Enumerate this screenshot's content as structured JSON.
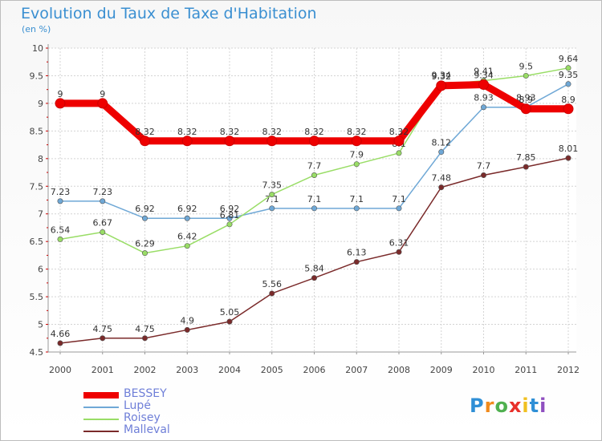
{
  "header": {
    "title": "Evolution du Taux de Taxe d'Habitation",
    "subtitle": "(en %)"
  },
  "logo": {
    "text": "Proxiti"
  },
  "legend_items": [
    "BESSEY",
    "Lupé",
    "Roisey",
    "Malleval"
  ],
  "chart_data": {
    "type": "line",
    "title": "Evolution du Taux de Taxe d'Habitation",
    "subtitle": "(en %)",
    "x": [
      "2000",
      "2001",
      "2002",
      "2003",
      "2004",
      "2005",
      "2006",
      "2007",
      "2008",
      "2009",
      "2010",
      "2011",
      "2012"
    ],
    "ylim": [
      4.5,
      10
    ],
    "yticks": [
      "4.5",
      "5",
      "5.5",
      "6",
      "6.5",
      "7",
      "7.5",
      "8",
      "8.5",
      "9",
      "9.5",
      "10"
    ],
    "grid": true,
    "legend": "bottom-left",
    "series": [
      {
        "name": "BESSEY",
        "color": "#ee0000",
        "values": [
          9,
          9,
          8.32,
          8.32,
          8.32,
          8.32,
          8.32,
          8.32,
          8.32,
          9.32,
          9.34,
          8.9,
          8.9
        ],
        "labels": [
          "9",
          "9",
          "8.32",
          "8.32",
          "8.32",
          "8.32",
          "8.32",
          "8.32",
          "8.32",
          "9.32",
          "9.34",
          "8.9",
          "8.9"
        ]
      },
      {
        "name": "Lupé",
        "color": "#6fa8d6",
        "values": [
          7.23,
          7.23,
          6.92,
          6.92,
          6.92,
          7.1,
          7.1,
          7.1,
          7.1,
          8.12,
          8.93,
          8.93,
          9.35
        ],
        "labels": [
          "7.23",
          "7.23",
          "6.92",
          "6.92",
          "6.92",
          "7.1",
          "7.1",
          "7.1",
          "7.1",
          "8.12",
          "8.93",
          "8.93",
          "9.35"
        ]
      },
      {
        "name": "Roisey",
        "color": "#99dd66",
        "values": [
          6.54,
          6.67,
          6.29,
          6.42,
          6.81,
          7.35,
          7.7,
          7.9,
          8.1,
          9.34,
          9.41,
          9.5,
          9.64
        ],
        "labels": [
          "6.54",
          "6.67",
          "6.29",
          "6.42",
          "6.81",
          "7.35",
          "7.7",
          "7.9",
          "8.1",
          "9.34",
          "9.41",
          "9.5",
          "9.64"
        ]
      },
      {
        "name": "Malleval",
        "color": "#7a2a2a",
        "values": [
          4.66,
          4.75,
          4.75,
          4.9,
          5.05,
          5.56,
          5.84,
          6.13,
          6.31,
          7.48,
          7.7,
          7.85,
          8.01
        ],
        "labels": [
          "4.66",
          "4.75",
          "4.75",
          "4.9",
          "5.05",
          "5.56",
          "5.84",
          "6.13",
          "6.31",
          "7.48",
          "7.7",
          "7.85",
          "8.01"
        ]
      }
    ]
  }
}
